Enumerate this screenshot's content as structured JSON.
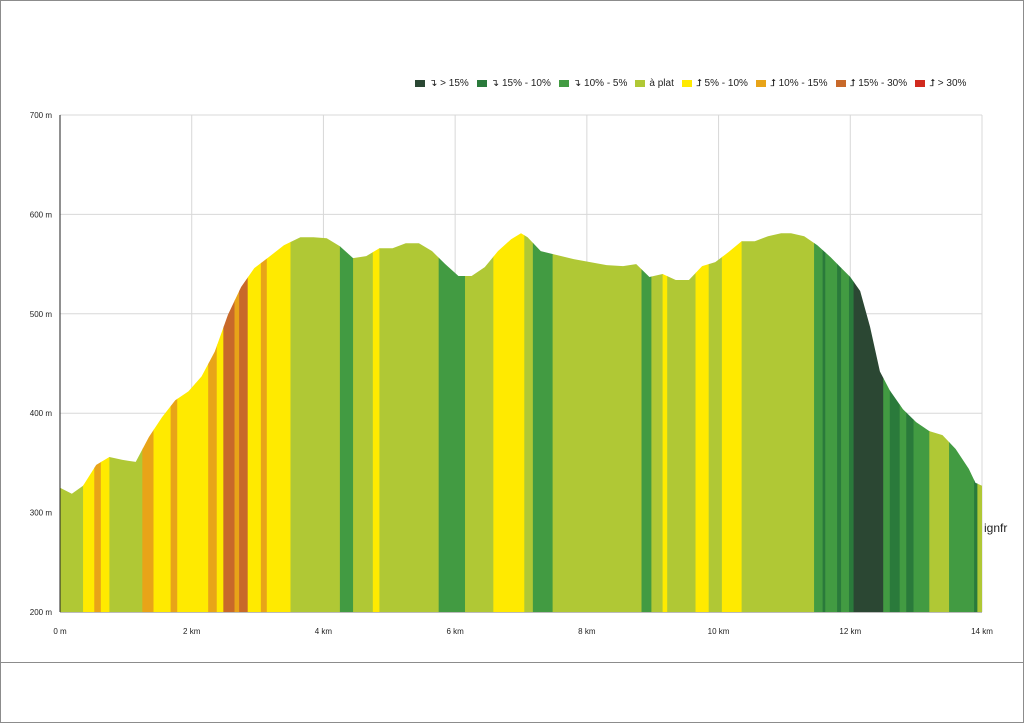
{
  "watermark": "ignfr",
  "chart_data": {
    "type": "area",
    "title": "",
    "xlabel": "",
    "ylabel": "",
    "xlim": [
      0,
      14
    ],
    "ylim": [
      200,
      700
    ],
    "grid": true,
    "legend_position": "top-right",
    "x_ticks": [
      {
        "value": 0,
        "label": "0 m"
      },
      {
        "value": 2,
        "label": "2 km"
      },
      {
        "value": 4,
        "label": "4 km"
      },
      {
        "value": 6,
        "label": "6 km"
      },
      {
        "value": 8,
        "label": "8 km"
      },
      {
        "value": 10,
        "label": "10 km"
      },
      {
        "value": 12,
        "label": "12 km"
      },
      {
        "value": 14,
        "label": "14 km"
      }
    ],
    "y_ticks": [
      {
        "value": 200,
        "label": "200 m"
      },
      {
        "value": 300,
        "label": "300 m"
      },
      {
        "value": 400,
        "label": "400 m"
      },
      {
        "value": 500,
        "label": "500 m"
      },
      {
        "value": 600,
        "label": "600 m"
      },
      {
        "value": 700,
        "label": "700 m"
      }
    ],
    "legend": [
      {
        "label": "↴ > 15%",
        "color": "#2b4733"
      },
      {
        "label": "↴ 15% - 10%",
        "color": "#2a7a3b"
      },
      {
        "label": "↴ 10% - 5%",
        "color": "#429b42"
      },
      {
        "label": "à plat",
        "color": "#b0c835"
      },
      {
        "label": "⮥ 5% - 10%",
        "color": "#ffea00"
      },
      {
        "label": "⮥ 10% - 15%",
        "color": "#e8a418"
      },
      {
        "label": "⮥ 15% - 30%",
        "color": "#c8692a"
      },
      {
        "label": "⮥ > 30%",
        "color": "#d12a1e"
      }
    ],
    "elevation_profile": {
      "x_km": [
        0,
        0.18,
        0.35,
        0.55,
        0.75,
        0.95,
        1.15,
        1.35,
        1.55,
        1.75,
        1.95,
        2.15,
        2.35,
        2.55,
        2.75,
        2.95,
        3.15,
        3.4,
        3.65,
        3.85,
        4.05,
        4.25,
        4.45,
        4.65,
        4.85,
        5.05,
        5.25,
        5.45,
        5.65,
        5.85,
        6.05,
        6.25,
        6.45,
        6.65,
        6.85,
        7.0,
        7.1,
        7.3,
        7.55,
        7.8,
        8.05,
        8.3,
        8.55,
        8.75,
        8.95,
        9.15,
        9.35,
        9.55,
        9.75,
        9.95,
        10.15,
        10.35,
        10.55,
        10.75,
        10.95,
        11.1,
        11.3,
        11.5,
        11.7,
        11.85,
        12.0,
        12.15,
        12.3,
        12.45,
        12.6,
        12.8,
        13.0,
        13.2,
        13.4,
        13.6,
        13.8,
        13.9,
        14.0
      ],
      "elevation_m": [
        325,
        319,
        327,
        348,
        356,
        353,
        351,
        376,
        396,
        413,
        422,
        437,
        462,
        499,
        527,
        546,
        556,
        569,
        577,
        577,
        576,
        568,
        556,
        558,
        566,
        566,
        571,
        571,
        563,
        550,
        538,
        538,
        547,
        563,
        575,
        581,
        577,
        563,
        559,
        555,
        552,
        549,
        548,
        550,
        537,
        540,
        534,
        534,
        548,
        552,
        562,
        573,
        573,
        578,
        581,
        581,
        578,
        569,
        557,
        547,
        537,
        523,
        487,
        442,
        423,
        404,
        391,
        382,
        378,
        364,
        344,
        330,
        327
      ]
    },
    "slope_segments": [
      {
        "from": 0.0,
        "to": 0.35,
        "category": "à plat"
      },
      {
        "from": 0.35,
        "to": 0.52,
        "category": "⮥ 5% - 10%"
      },
      {
        "from": 0.52,
        "to": 0.62,
        "category": "⮥ 10% - 15%"
      },
      {
        "from": 0.62,
        "to": 0.75,
        "category": "⮥ 5% - 10%"
      },
      {
        "from": 0.75,
        "to": 1.25,
        "category": "à plat"
      },
      {
        "from": 1.25,
        "to": 1.42,
        "category": "⮥ 10% - 15%"
      },
      {
        "from": 1.42,
        "to": 1.68,
        "category": "⮥ 5% - 10%"
      },
      {
        "from": 1.68,
        "to": 1.78,
        "category": "⮥ 10% - 15%"
      },
      {
        "from": 1.78,
        "to": 2.05,
        "category": "⮥ 5% - 10%"
      },
      {
        "from": 2.05,
        "to": 2.25,
        "category": "⮥ 5% - 10%"
      },
      {
        "from": 2.25,
        "to": 2.38,
        "category": "⮥ 10% - 15%"
      },
      {
        "from": 2.38,
        "to": 2.48,
        "category": "⮥ 5% - 10%"
      },
      {
        "from": 2.48,
        "to": 2.65,
        "category": "⮥ 15% - 30%"
      },
      {
        "from": 2.65,
        "to": 2.72,
        "category": "⮥ 10% - 15%"
      },
      {
        "from": 2.72,
        "to": 2.85,
        "category": "⮥ 15% - 30%"
      },
      {
        "from": 2.85,
        "to": 3.05,
        "category": "⮥ 5% - 10%"
      },
      {
        "from": 3.05,
        "to": 3.14,
        "category": "⮥ 10% - 15%"
      },
      {
        "from": 3.14,
        "to": 3.5,
        "category": "⮥ 5% - 10%"
      },
      {
        "from": 3.5,
        "to": 4.25,
        "category": "à plat"
      },
      {
        "from": 4.25,
        "to": 4.45,
        "category": "↴ 10% - 5%"
      },
      {
        "from": 4.45,
        "to": 4.75,
        "category": "à plat"
      },
      {
        "from": 4.75,
        "to": 4.85,
        "category": "⮥ 5% - 10%"
      },
      {
        "from": 4.85,
        "to": 5.75,
        "category": "à plat"
      },
      {
        "from": 5.75,
        "to": 6.15,
        "category": "↴ 10% - 5%"
      },
      {
        "from": 6.15,
        "to": 6.58,
        "category": "à plat"
      },
      {
        "from": 6.58,
        "to": 7.05,
        "category": "⮥ 5% - 10%"
      },
      {
        "from": 7.05,
        "to": 7.18,
        "category": "à plat"
      },
      {
        "from": 7.18,
        "to": 7.48,
        "category": "↴ 10% - 5%"
      },
      {
        "from": 7.48,
        "to": 8.83,
        "category": "à plat"
      },
      {
        "from": 8.83,
        "to": 8.98,
        "category": "↴ 10% - 5%"
      },
      {
        "from": 8.98,
        "to": 9.15,
        "category": "à plat"
      },
      {
        "from": 9.15,
        "to": 9.22,
        "category": "⮥ 5% - 10%"
      },
      {
        "from": 9.22,
        "to": 9.65,
        "category": "à plat"
      },
      {
        "from": 9.65,
        "to": 9.85,
        "category": "⮥ 5% - 10%"
      },
      {
        "from": 9.85,
        "to": 10.05,
        "category": "à plat"
      },
      {
        "from": 10.05,
        "to": 10.35,
        "category": "⮥ 5% - 10%"
      },
      {
        "from": 10.35,
        "to": 11.45,
        "category": "à plat"
      },
      {
        "from": 11.45,
        "to": 11.58,
        "category": "↴ 10% - 5%"
      },
      {
        "from": 11.58,
        "to": 11.62,
        "category": "↴ 15% - 10%"
      },
      {
        "from": 11.62,
        "to": 11.8,
        "category": "↴ 10% - 5%"
      },
      {
        "from": 11.8,
        "to": 11.86,
        "category": "↴ 15% - 10%"
      },
      {
        "from": 11.86,
        "to": 11.98,
        "category": "↴ 10% - 5%"
      },
      {
        "from": 11.98,
        "to": 12.05,
        "category": "↴ 15% - 10%"
      },
      {
        "from": 12.05,
        "to": 12.5,
        "category": "↴ > 15%"
      },
      {
        "from": 12.5,
        "to": 12.6,
        "category": "↴ 10% - 5%"
      },
      {
        "from": 12.6,
        "to": 12.75,
        "category": "↴ 15% - 10%"
      },
      {
        "from": 12.75,
        "to": 12.85,
        "category": "↴ 10% - 5%"
      },
      {
        "from": 12.85,
        "to": 12.96,
        "category": "↴ 15% - 10%"
      },
      {
        "from": 12.96,
        "to": 13.2,
        "category": "↴ 10% - 5%"
      },
      {
        "from": 13.2,
        "to": 13.5,
        "category": "à plat"
      },
      {
        "from": 13.5,
        "to": 13.88,
        "category": "↴ 10% - 5%"
      },
      {
        "from": 13.88,
        "to": 13.93,
        "category": "↴ 15% - 10%"
      },
      {
        "from": 13.93,
        "to": 14.0,
        "category": "à plat"
      }
    ]
  }
}
